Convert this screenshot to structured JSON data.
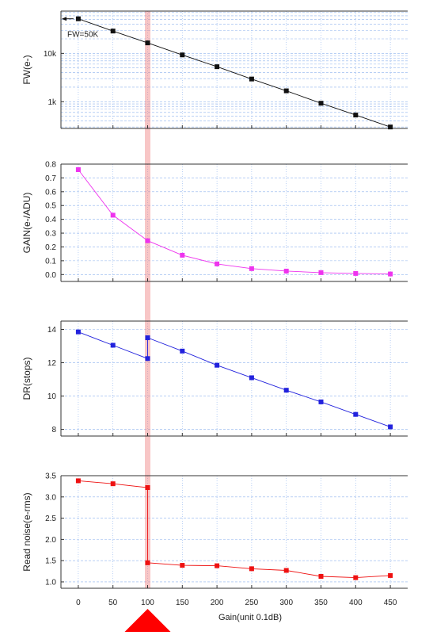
{
  "chart_data": {
    "x": [
      0,
      50,
      100,
      150,
      200,
      250,
      300,
      350,
      400,
      450
    ],
    "xticks": [
      0,
      50,
      100,
      150,
      200,
      250,
      300,
      350,
      400,
      450
    ],
    "xlabel": "Gain(unit 0.1dB)",
    "xlim": [
      -25,
      475
    ],
    "highlight_x": 100,
    "grid": true,
    "panels": [
      {
        "type": "line",
        "ylabel": "FW(e-)",
        "yscale": "log",
        "ylim": [
          280,
          75000
        ],
        "yticks": [
          1000,
          10000
        ],
        "ytick_labels": [
          "1k",
          "10k"
        ],
        "color": "#111111",
        "annotation": "FW=50K",
        "points": [
          [
            0,
            52000
          ],
          [
            50,
            29000
          ],
          [
            100,
            16500
          ],
          [
            150,
            9300
          ],
          [
            200,
            5300
          ],
          [
            250,
            2950
          ],
          [
            300,
            1680
          ],
          [
            350,
            930
          ],
          [
            400,
            530
          ],
          [
            450,
            300
          ]
        ]
      },
      {
        "type": "line",
        "ylabel": "GAIN(e-/ADU)",
        "ylim": [
          -0.05,
          0.8
        ],
        "yticks": [
          0.0,
          0.1,
          0.2,
          0.3,
          0.4,
          0.5,
          0.6,
          0.7,
          0.8
        ],
        "ytick_labels": [
          "0.0",
          "0.1",
          "0.2",
          "0.3",
          "0.4",
          "0.5",
          "0.6",
          "0.7",
          "0.8"
        ],
        "color": "#ee33ee",
        "points": [
          [
            0,
            0.76
          ],
          [
            50,
            0.43
          ],
          [
            100,
            0.245
          ],
          [
            150,
            0.14
          ],
          [
            200,
            0.077
          ],
          [
            250,
            0.043
          ],
          [
            300,
            0.025
          ],
          [
            350,
            0.014
          ],
          [
            400,
            0.008
          ],
          [
            450,
            0.004
          ]
        ]
      },
      {
        "type": "line",
        "ylabel": "DR(stops)",
        "ylim": [
          7.6,
          14.5
        ],
        "yticks": [
          8,
          10,
          12,
          14
        ],
        "ytick_labels": [
          "8",
          "10",
          "12",
          "14"
        ],
        "color": "#2222dd",
        "points": [
          [
            0,
            13.85
          ],
          [
            50,
            13.05
          ],
          [
            100,
            12.25
          ],
          [
            100,
            13.5
          ],
          [
            150,
            12.7
          ],
          [
            200,
            11.85
          ],
          [
            250,
            11.1
          ],
          [
            300,
            10.35
          ],
          [
            350,
            9.65
          ],
          [
            400,
            8.9
          ],
          [
            450,
            8.15
          ]
        ]
      },
      {
        "type": "line",
        "ylabel": "Read noise(e-rms)",
        "ylim": [
          0.85,
          3.5
        ],
        "yticks": [
          1.0,
          1.5,
          2.0,
          2.5,
          3.0,
          3.5
        ],
        "ytick_labels": [
          "1.0",
          "1.5",
          "2.0",
          "2.5",
          "3.0",
          "3.5"
        ],
        "color": "#ee1111",
        "points": [
          [
            0,
            3.38
          ],
          [
            50,
            3.31
          ],
          [
            100,
            3.22
          ],
          [
            100,
            1.45
          ],
          [
            150,
            1.39
          ],
          [
            200,
            1.38
          ],
          [
            250,
            1.31
          ],
          [
            300,
            1.27
          ],
          [
            350,
            1.13
          ],
          [
            400,
            1.1
          ],
          [
            450,
            1.15
          ]
        ]
      }
    ]
  }
}
